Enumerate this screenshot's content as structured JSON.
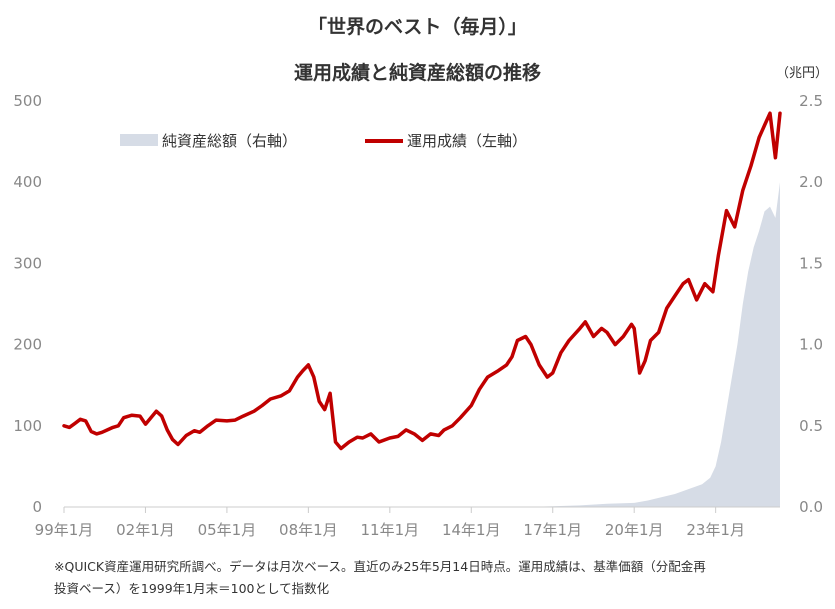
{
  "header": {
    "title_line1": "「世界のベスト（毎月）」",
    "title_line2": "運用成績と純資産総額の推移",
    "right_unit": "（兆円）"
  },
  "legend": {
    "assets_label": "純資産総額（右軸）",
    "performance_label": "運用成績（左軸）"
  },
  "footnote": {
    "line1": "※QUICK資産運用研究所調べ。データは月次ベース。直近のみ25年5月14日時点。運用成績は、基準価額（分配金再",
    "line2": "投資ベース）を1999年1月末＝100として指数化"
  },
  "colors": {
    "performance_line": "#c00000",
    "assets_area": "#d6dce6",
    "axis": "#cccccc"
  },
  "chart_data": {
    "type": "line",
    "x_tick_labels": [
      "99年1月",
      "02年1月",
      "05年1月",
      "08年1月",
      "11年1月",
      "14年1月",
      "17年1月",
      "20年1月",
      "23年1月"
    ],
    "x_tick_years": [
      1999,
      2002,
      2005,
      2008,
      2011,
      2014,
      2017,
      2020,
      2023
    ],
    "x_range": [
      1999.0,
      2025.37
    ],
    "left_axis": {
      "ticks": [
        "0",
        "100",
        "200",
        "300",
        "400",
        "500"
      ],
      "ylim": [
        0,
        500
      ]
    },
    "right_axis": {
      "ticks": [
        "0.0",
        "0.5",
        "1.0",
        "1.5",
        "2.0",
        "2.5"
      ],
      "ylim": [
        0,
        2.5
      ]
    },
    "series": [
      {
        "name": "運用成績（左軸）",
        "axis": "left",
        "style": "line",
        "x": [
          1999.0,
          1999.2,
          1999.4,
          1999.6,
          1999.8,
          2000.0,
          2000.2,
          2000.4,
          2000.6,
          2000.8,
          2001.0,
          2001.2,
          2001.5,
          2001.8,
          2002.0,
          2002.2,
          2002.4,
          2002.6,
          2002.8,
          2003.0,
          2003.2,
          2003.5,
          2003.8,
          2004.0,
          2004.3,
          2004.6,
          2005.0,
          2005.3,
          2005.6,
          2006.0,
          2006.3,
          2006.6,
          2007.0,
          2007.3,
          2007.6,
          2007.8,
          2008.0,
          2008.2,
          2008.4,
          2008.6,
          2008.8,
          2009.0,
          2009.2,
          2009.5,
          2009.8,
          2010.0,
          2010.3,
          2010.6,
          2011.0,
          2011.3,
          2011.6,
          2011.9,
          2012.2,
          2012.5,
          2012.8,
          2013.0,
          2013.3,
          2013.6,
          2014.0,
          2014.3,
          2014.6,
          2015.0,
          2015.3,
          2015.5,
          2015.7,
          2016.0,
          2016.2,
          2016.5,
          2016.8,
          2017.0,
          2017.3,
          2017.6,
          2018.0,
          2018.2,
          2018.5,
          2018.8,
          2019.0,
          2019.3,
          2019.6,
          2019.9,
          2020.0,
          2020.2,
          2020.4,
          2020.6,
          2020.9,
          2021.2,
          2021.5,
          2021.8,
          2022.0,
          2022.3,
          2022.6,
          2022.9,
          2023.1,
          2023.4,
          2023.7,
          2024.0,
          2024.3,
          2024.6,
          2024.8,
          2025.0,
          2025.2,
          2025.37
        ],
        "y": [
          100,
          98,
          103,
          108,
          106,
          93,
          90,
          92,
          95,
          98,
          100,
          110,
          113,
          112,
          102,
          110,
          118,
          112,
          95,
          83,
          77,
          88,
          94,
          92,
          100,
          107,
          106,
          107,
          112,
          118,
          125,
          133,
          137,
          143,
          160,
          168,
          175,
          160,
          130,
          120,
          140,
          80,
          72,
          80,
          86,
          85,
          90,
          80,
          85,
          87,
          95,
          90,
          82,
          90,
          88,
          95,
          100,
          110,
          125,
          145,
          160,
          168,
          175,
          185,
          205,
          210,
          200,
          175,
          160,
          165,
          190,
          205,
          220,
          228,
          210,
          220,
          215,
          200,
          210,
          225,
          220,
          165,
          180,
          205,
          215,
          245,
          260,
          275,
          280,
          255,
          275,
          265,
          310,
          365,
          345,
          390,
          420,
          455,
          470,
          485,
          430,
          485
        ]
      },
      {
        "name": "純資産総額（右軸）",
        "axis": "right",
        "style": "area",
        "x": [
          1999.0,
          2016.0,
          2017.0,
          2018.0,
          2019.0,
          2020.0,
          2020.5,
          2021.0,
          2021.5,
          2022.0,
          2022.5,
          2022.8,
          2023.0,
          2023.2,
          2023.4,
          2023.6,
          2023.8,
          2024.0,
          2024.2,
          2024.4,
          2024.6,
          2024.8,
          2025.0,
          2025.2,
          2025.37
        ],
        "y": [
          0.0,
          0.0,
          0.005,
          0.01,
          0.02,
          0.025,
          0.04,
          0.06,
          0.08,
          0.11,
          0.14,
          0.18,
          0.25,
          0.4,
          0.6,
          0.8,
          1.0,
          1.25,
          1.45,
          1.6,
          1.7,
          1.82,
          1.85,
          1.78,
          2.0
        ]
      }
    ]
  }
}
